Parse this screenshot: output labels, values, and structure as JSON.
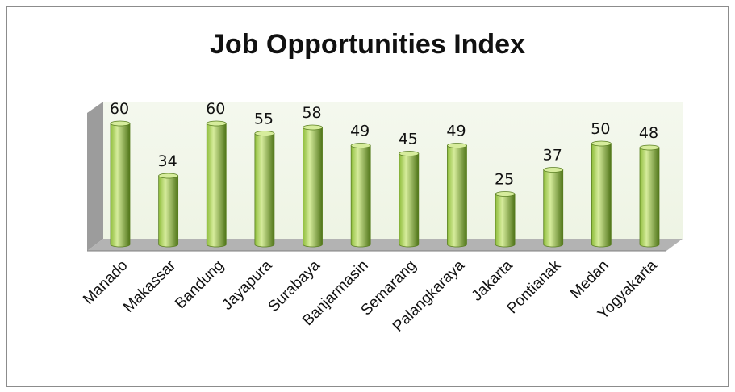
{
  "chart_data": {
    "type": "bar",
    "title": "Job Opportunities Index",
    "categories": [
      "Manado",
      "Makassar",
      "Bandung",
      "Jayapura",
      "Surabaya",
      "Banjarmasin",
      "Semarang",
      "Palangkaraya",
      "Jakarta",
      "Pontianak",
      "Medan",
      "Yogyakarta"
    ],
    "values": [
      60,
      34,
      60,
      55,
      58,
      49,
      45,
      49,
      25,
      37,
      50,
      48
    ],
    "ylim": [
      0,
      60
    ],
    "data_labels": true,
    "grid": false,
    "legend": "none",
    "bar_shape": "3d-cylinder",
    "colors": {
      "bar_light": "#d6ec9c",
      "bar_mid": "#8fbd3c",
      "bar_dark": "#4f7418",
      "backwall": "#eef4e4",
      "floor": "#b3b3b3",
      "sidewall": "#9c9c9c"
    }
  }
}
